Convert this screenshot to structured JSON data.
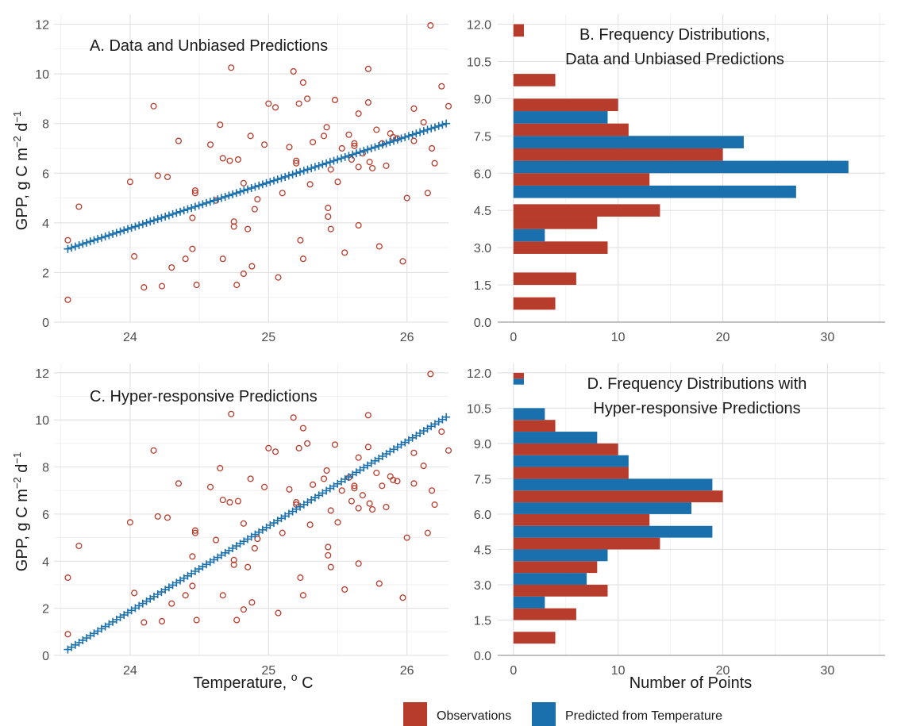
{
  "colors": {
    "observations": "#b83c2c",
    "predicted": "#1a70ad"
  },
  "legend": {
    "items": [
      "Observations",
      "Predicted from Temperature"
    ]
  },
  "chart_data": [
    {
      "id": "A",
      "type": "scatter",
      "title": "A.  Data and Unbiased Predictions",
      "xlabel": "",
      "ylabel": "GPP,  g C m-2 d-1",
      "xlim": [
        23.45,
        26.3
      ],
      "ylim": [
        0,
        12.4
      ],
      "xticks": [
        24,
        25,
        26
      ],
      "yticks": [
        0,
        2,
        4,
        6,
        8,
        10,
        12
      ],
      "series": [
        {
          "name": "Observations",
          "marker": "open-circle",
          "points": [
            [
              23.55,
              0.9
            ],
            [
              23.55,
              3.3
            ],
            [
              23.63,
              4.65
            ],
            [
              24.0,
              5.65
            ],
            [
              24.03,
              2.65
            ],
            [
              24.1,
              1.4
            ],
            [
              24.17,
              8.7
            ],
            [
              24.2,
              5.9
            ],
            [
              24.23,
              1.45
            ],
            [
              24.27,
              5.85
            ],
            [
              24.3,
              2.2
            ],
            [
              24.35,
              7.3
            ],
            [
              24.4,
              2.55
            ],
            [
              24.45,
              4.2
            ],
            [
              24.45,
              2.95
            ],
            [
              24.47,
              5.3
            ],
            [
              24.47,
              5.2
            ],
            [
              24.48,
              1.5
            ],
            [
              24.58,
              7.15
            ],
            [
              24.62,
              4.9
            ],
            [
              24.65,
              7.95
            ],
            [
              24.67,
              6.6
            ],
            [
              24.67,
              2.55
            ],
            [
              24.72,
              6.5
            ],
            [
              24.73,
              10.25
            ],
            [
              24.75,
              4.05
            ],
            [
              24.75,
              3.85
            ],
            [
              24.77,
              1.5
            ],
            [
              24.78,
              6.55
            ],
            [
              24.82,
              5.6
            ],
            [
              24.82,
              1.95
            ],
            [
              24.85,
              3.75
            ],
            [
              24.87,
              7.5
            ],
            [
              24.88,
              2.25
            ],
            [
              24.9,
              4.55
            ],
            [
              24.92,
              4.95
            ],
            [
              24.97,
              7.15
            ],
            [
              25.0,
              8.8
            ],
            [
              25.05,
              8.65
            ],
            [
              25.07,
              1.8
            ],
            [
              25.1,
              5.2
            ],
            [
              25.15,
              7.05
            ],
            [
              25.18,
              10.1
            ],
            [
              25.2,
              6.5
            ],
            [
              25.2,
              6.4
            ],
            [
              25.22,
              8.8
            ],
            [
              25.23,
              3.3
            ],
            [
              25.25,
              2.55
            ],
            [
              25.25,
              9.65
            ],
            [
              25.28,
              9.0
            ],
            [
              25.3,
              5.55
            ],
            [
              25.32,
              7.25
            ],
            [
              25.4,
              7.5
            ],
            [
              25.42,
              7.85
            ],
            [
              25.43,
              4.6
            ],
            [
              25.43,
              4.25
            ],
            [
              25.45,
              6.15
            ],
            [
              25.45,
              3.75
            ],
            [
              25.48,
              8.95
            ],
            [
              25.5,
              5.65
            ],
            [
              25.53,
              7.0
            ],
            [
              25.55,
              2.8
            ],
            [
              25.58,
              7.55
            ],
            [
              25.6,
              6.55
            ],
            [
              25.62,
              7.2
            ],
            [
              25.62,
              7.1
            ],
            [
              25.65,
              8.4
            ],
            [
              25.65,
              3.9
            ],
            [
              25.65,
              6.25
            ],
            [
              25.68,
              6.8
            ],
            [
              25.72,
              10.2
            ],
            [
              25.72,
              8.85
            ],
            [
              25.73,
              6.45
            ],
            [
              25.75,
              6.2
            ],
            [
              25.78,
              7.75
            ],
            [
              25.8,
              3.05
            ],
            [
              25.82,
              7.2
            ],
            [
              25.85,
              6.3
            ],
            [
              25.88,
              7.6
            ],
            [
              25.9,
              7.45
            ],
            [
              25.93,
              7.4
            ],
            [
              25.97,
              2.45
            ],
            [
              26.0,
              5.0
            ],
            [
              26.05,
              8.6
            ],
            [
              26.05,
              7.3
            ],
            [
              26.12,
              8.05
            ],
            [
              26.15,
              5.2
            ],
            [
              26.17,
              11.95
            ],
            [
              26.18,
              7.0
            ],
            [
              26.2,
              6.4
            ],
            [
              26.25,
              9.5
            ],
            [
              26.3,
              8.7
            ],
            [
              26.4,
              8.55
            ],
            [
              26.45,
              7.8
            ],
            [
              26.55,
              6.3
            ]
          ]
        },
        {
          "name": "Predicted from Temperature",
          "marker": "plus",
          "line": {
            "x0": 23.55,
            "y0": 2.95,
            "x1": 26.5,
            "y1": 8.4,
            "n": 110
          }
        }
      ]
    },
    {
      "id": "B",
      "type": "bar",
      "orientation": "horizontal",
      "title": "B.  Frequency Distributions,",
      "subtitle": "Data and Unbiased Predictions",
      "xlabel": "",
      "ylabel": "",
      "xlim": [
        -1.5,
        35.5
      ],
      "ylim": [
        0,
        12.4
      ],
      "xticks": [
        0,
        10,
        20,
        30
      ],
      "yticks": [
        "0.0",
        "1.5",
        "3.0",
        "4.5",
        "6.0",
        "7.5",
        "9.0",
        "10.5",
        "12.0"
      ],
      "bin_centers": [
        0.75,
        1.75,
        3.0,
        3.5,
        4.0,
        4.5,
        5.25,
        5.75,
        6.25,
        6.75,
        7.25,
        7.75,
        8.25,
        8.75,
        9.75,
        11.75
      ],
      "series": [
        {
          "name": "Observations",
          "values": [
            4,
            6,
            9,
            0,
            8,
            14,
            0,
            13,
            0,
            20,
            0,
            11,
            0,
            10,
            4,
            1
          ]
        },
        {
          "name": "Predicted from Temperature",
          "values": [
            0,
            0,
            0,
            3,
            0,
            0,
            27,
            0,
            32,
            0,
            22,
            0,
            9,
            0,
            0,
            0
          ]
        }
      ]
    },
    {
      "id": "C",
      "type": "scatter",
      "title": "C.  Hyper-responsive Predictions",
      "xlabel": "Temperature,  o C",
      "ylabel": "GPP,  g C m-2 d-1",
      "xlim": [
        23.45,
        26.3
      ],
      "ylim": [
        0,
        12.4
      ],
      "xticks": [
        24,
        25,
        26
      ],
      "yticks": [
        0,
        2,
        4,
        6,
        8,
        10,
        12
      ],
      "series": [
        {
          "name": "Observations",
          "marker": "open-circle",
          "same_as": "A"
        },
        {
          "name": "Predicted from Temperature",
          "marker": "plus",
          "line": {
            "x0": 23.55,
            "y0": 0.25,
            "x1": 26.5,
            "y1": 10.9,
            "n": 110
          }
        }
      ]
    },
    {
      "id": "D",
      "type": "bar",
      "orientation": "horizontal",
      "title": "D.  Frequency Distributions with",
      "subtitle": "Hyper-responsive Predictions",
      "xlabel": "Number of Points",
      "ylabel": "",
      "xlim": [
        -1.5,
        35.5
      ],
      "ylim": [
        0,
        12.4
      ],
      "xticks": [
        0,
        10,
        20,
        30
      ],
      "yticks": [
        "0.0",
        "1.5",
        "3.0",
        "4.5",
        "6.0",
        "7.5",
        "9.0",
        "10.5",
        "12.0"
      ],
      "bin_centers": [
        0.75,
        1.75,
        2.25,
        2.75,
        3.25,
        3.75,
        4.25,
        4.75,
        5.25,
        5.75,
        6.25,
        6.75,
        7.25,
        7.75,
        8.25,
        8.75,
        9.25,
        9.75,
        10.25,
        11.75
      ],
      "series": [
        {
          "name": "Observations",
          "values": [
            4,
            6,
            0,
            9,
            0,
            8,
            0,
            14,
            0,
            13,
            0,
            20,
            0,
            11,
            0,
            10,
            0,
            4,
            0,
            1
          ]
        },
        {
          "name": "Predicted from Temperature",
          "values": [
            0,
            0,
            3,
            0,
            7,
            0,
            9,
            0,
            19,
            0,
            17,
            0,
            19,
            0,
            11,
            0,
            8,
            0,
            3,
            1
          ]
        }
      ]
    }
  ]
}
